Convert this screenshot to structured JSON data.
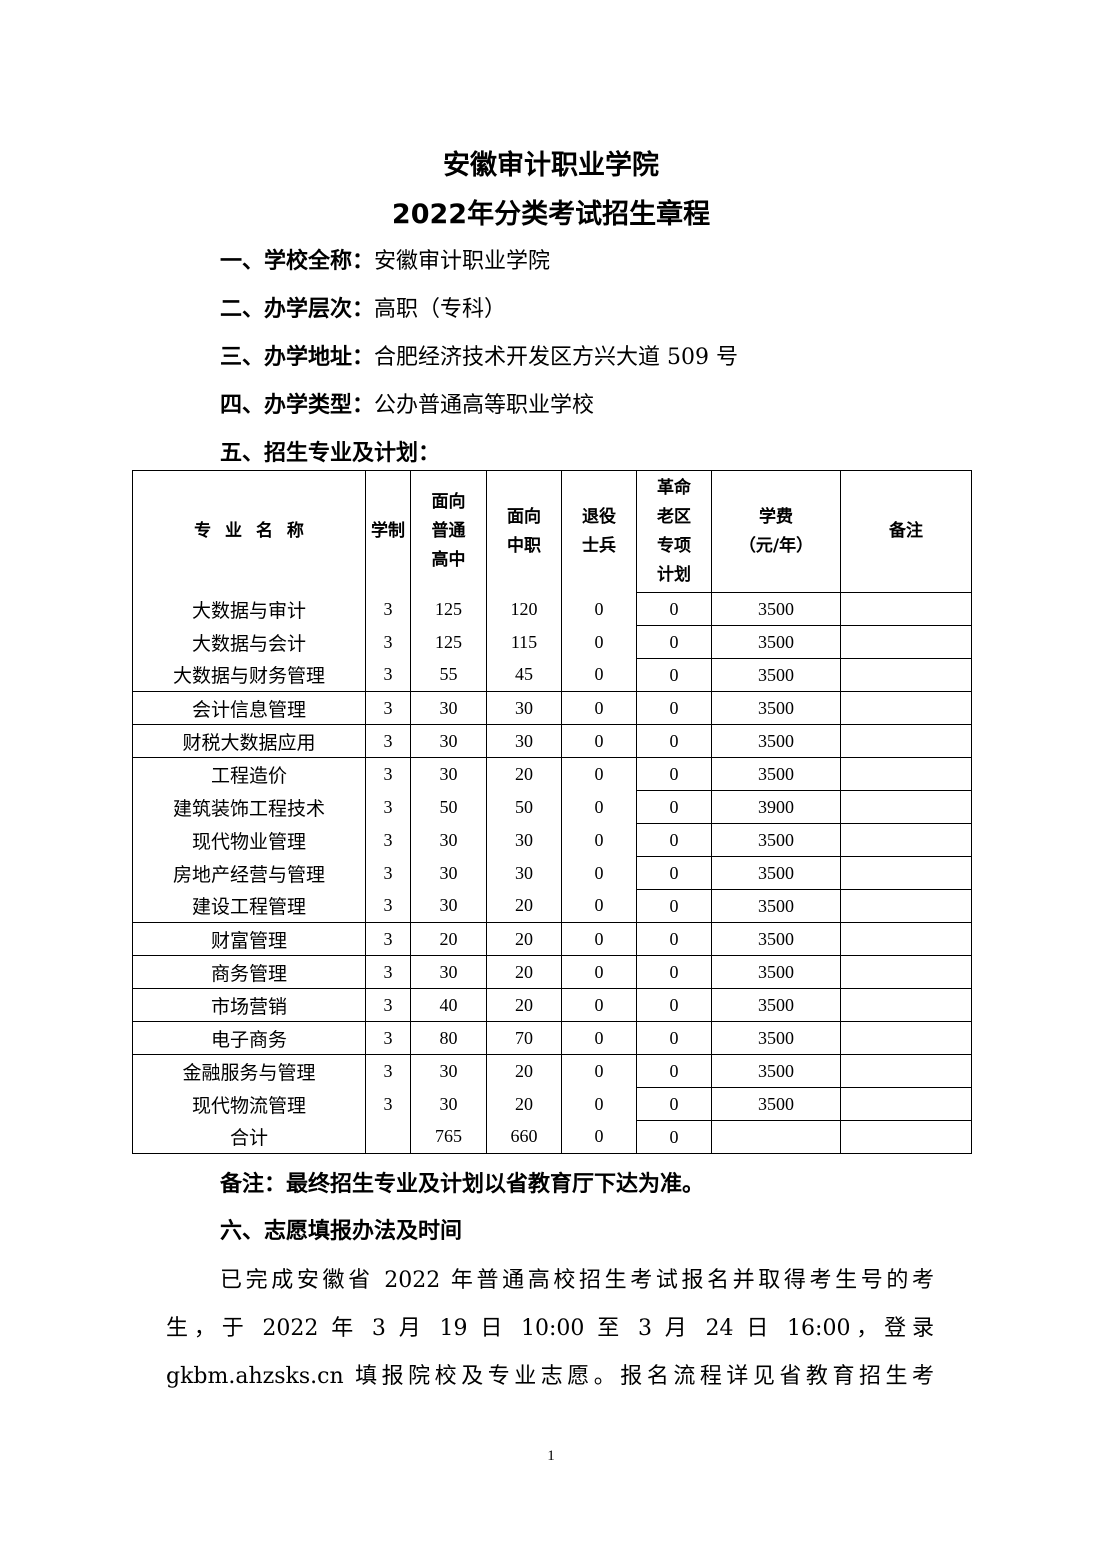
{
  "title": [
    "安徽审计职业学院",
    "2022年分类考试招生章程"
  ],
  "sections": [
    {
      "label": "一、学校全称：",
      "value": "安徽审计职业学院"
    },
    {
      "label": "二、办学层次：",
      "value": "高职（专科）"
    },
    {
      "label": "三、办学地址：",
      "value": "合肥经济技术开发区方兴大道 509 号"
    },
    {
      "label": "四、办学类型：",
      "value": "公办普通高等职业学校"
    },
    {
      "label": "五、招生专业及计划：",
      "value": ""
    }
  ],
  "table": {
    "headers": [
      "专 业 名 称",
      "学制",
      "面向\n普通\n高中",
      "面向\n中职",
      "退役\n士兵",
      "革命\n老区\n专项\n计划",
      "学费\n（元/年）",
      "备注"
    ],
    "rows": [
      [
        "大数据与审计",
        "3",
        "125",
        "120",
        "0",
        "0",
        "3500",
        ""
      ],
      [
        "大数据与会计",
        "3",
        "125",
        "115",
        "0",
        "0",
        "3500",
        ""
      ],
      [
        "大数据与财务管理",
        "3",
        "55",
        "45",
        "0",
        "0",
        "3500",
        ""
      ],
      [
        "会计信息管理",
        "3",
        "30",
        "30",
        "0",
        "0",
        "3500",
        ""
      ],
      [
        "财税大数据应用",
        "3",
        "30",
        "30",
        "0",
        "0",
        "3500",
        ""
      ],
      [
        "工程造价",
        "3",
        "30",
        "20",
        "0",
        "0",
        "3500",
        ""
      ],
      [
        "建筑装饰工程技术",
        "3",
        "50",
        "50",
        "0",
        "0",
        "3900",
        ""
      ],
      [
        "现代物业管理",
        "3",
        "30",
        "30",
        "0",
        "0",
        "3500",
        ""
      ],
      [
        "房地产经营与管理",
        "3",
        "30",
        "30",
        "0",
        "0",
        "3500",
        ""
      ],
      [
        "建设工程管理",
        "3",
        "30",
        "20",
        "0",
        "0",
        "3500",
        ""
      ],
      [
        "财富管理",
        "3",
        "20",
        "20",
        "0",
        "0",
        "3500",
        ""
      ],
      [
        "商务管理",
        "3",
        "30",
        "20",
        "0",
        "0",
        "3500",
        ""
      ],
      [
        "市场营销",
        "3",
        "40",
        "20",
        "0",
        "0",
        "3500",
        ""
      ],
      [
        "电子商务",
        "3",
        "80",
        "70",
        "0",
        "0",
        "3500",
        ""
      ],
      [
        "金融服务与管理",
        "3",
        "30",
        "20",
        "0",
        "0",
        "3500",
        ""
      ],
      [
        "现代物流管理",
        "3",
        "30",
        "20",
        "0",
        "0",
        "3500",
        ""
      ],
      [
        "合计",
        "",
        "765",
        "660",
        "0",
        "0",
        "",
        ""
      ]
    ]
  },
  "note": "备注：最终招生专业及计划以省教育厅下达为准。",
  "section6": "六、志愿填报办法及时间",
  "paragraph_lines": [
    "已完成安徽省 2022 年普通高校招生考试报名并取得考生号的考",
    "生，于 2022 年 3 月 19 日 10:00 至 3 月 24 日 16:00，登录",
    "gkbm.ahzsks.cn 填报院校及专业志愿。报名流程详见省教育招生考"
  ],
  "page_number": "1"
}
